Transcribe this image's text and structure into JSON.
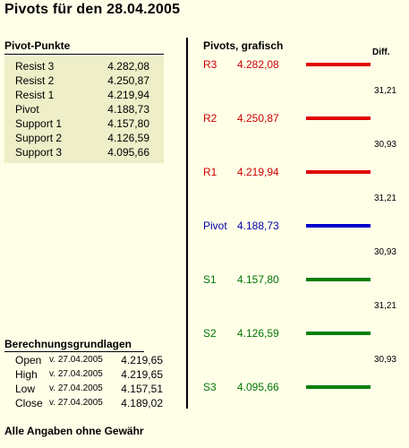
{
  "title": "Pivots für den 28.04.2005",
  "pivot_points": {
    "heading": "Pivot-Punkte",
    "rows": [
      {
        "label": "Resist 3",
        "value": "4.282,08"
      },
      {
        "label": "Resist 2",
        "value": "4.250,87"
      },
      {
        "label": "Resist 1",
        "value": "4.219,94"
      },
      {
        "label": "Pivot",
        "value": "4.188,73"
      },
      {
        "label": "Support 1",
        "value": "4.157,80"
      },
      {
        "label": "Support 2",
        "value": "4.126,59"
      },
      {
        "label": "Support 3",
        "value": "4.095,66"
      }
    ]
  },
  "graphic": {
    "heading": "Pivots, grafisch",
    "diff_heading": "Diff.",
    "levels": [
      {
        "name": "R3",
        "value": "4.282,08",
        "color": "#CC0000",
        "line_color": "#E00000"
      },
      {
        "name": "R2",
        "value": "4.250,87",
        "color": "#CC0000",
        "line_color": "#E00000"
      },
      {
        "name": "R1",
        "value": "4.219,94",
        "color": "#CC0000",
        "line_color": "#E00000"
      },
      {
        "name": "Pivot",
        "value": "4.188,73",
        "color": "#0000AA",
        "line_color": "#0000CC"
      },
      {
        "name": "S1",
        "value": "4.157,80",
        "color": "#007700",
        "line_color": "#008000"
      },
      {
        "name": "S2",
        "value": "4.126,59",
        "color": "#007700",
        "line_color": "#008000"
      },
      {
        "name": "S3",
        "value": "4.095,66",
        "color": "#007700",
        "line_color": "#008000"
      }
    ],
    "diffs": [
      "31,21",
      "30,93",
      "31,21",
      "30,93",
      "31,21",
      "30,93"
    ]
  },
  "calculation_basis": {
    "heading": "Berechnungsgrundlagen",
    "rows": [
      {
        "label": "Open",
        "date": "v. 27.04.2005",
        "value": "4.219,65"
      },
      {
        "label": "High",
        "date": "v. 27.04.2005",
        "value": "4.219,65"
      },
      {
        "label": "Low",
        "date": "v. 27.04.2005",
        "value": "4.157,51"
      },
      {
        "label": "Close",
        "date": "v. 27.04.2005",
        "value": "4.189,02"
      }
    ]
  },
  "disclaimer": "Alle Angaben ohne Gewähr"
}
